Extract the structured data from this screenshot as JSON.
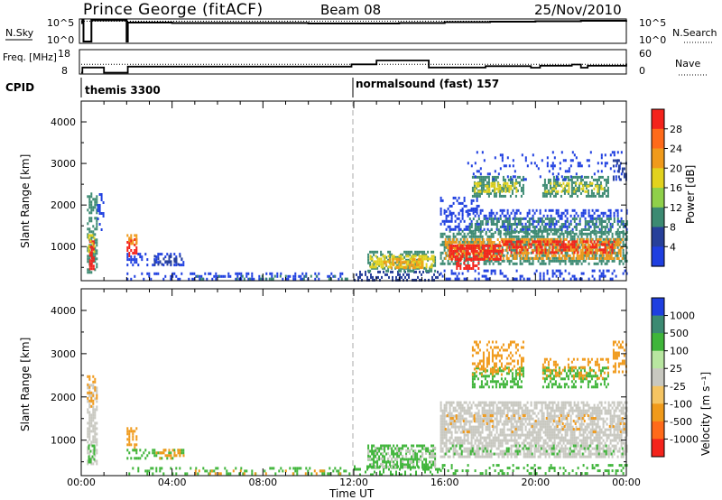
{
  "header": {
    "station": "Prince George (fitACF)",
    "beam": "Beam 08",
    "date": "25/Nov/2010"
  },
  "colors": {
    "blue": "#1f3fe0",
    "blue_dark": "#27409a",
    "teal": "#3c8a72",
    "green": "#3fb53a",
    "yellow": "#e2d21e",
    "orange": "#f09a1b",
    "red": "#f4231c",
    "grey": "#c8c8c0",
    "white": "#ffffff"
  },
  "chart_data": [
    {
      "type": "line",
      "panel": "nsky-nsearch",
      "y_left_label": "N.Sky",
      "y_right_label": "N.Search",
      "y_left_ticks": [
        "10^5",
        "10^0"
      ],
      "y_right_ticks": [
        "10^5",
        "10^0"
      ],
      "ylim": [
        0,
        5
      ],
      "series": [
        {
          "name": "N.Sky",
          "style": "solid",
          "x": [
            0.0,
            0.05,
            0.1,
            0.4,
            0.45,
            0.9,
            2.0,
            2.05,
            4,
            6,
            8,
            10,
            12,
            14,
            16,
            18,
            20,
            22,
            24
          ],
          "y": [
            4.3,
            4.9,
            0.2,
            0.2,
            4.9,
            4.9,
            0.2,
            4.4,
            4.3,
            4.3,
            4.3,
            4.2,
            4.2,
            4.3,
            4.5,
            4.6,
            4.7,
            4.8,
            4.9
          ]
        },
        {
          "name": "N.Search",
          "style": "dotted",
          "x": [
            0,
            24
          ],
          "y": [
            4.7,
            4.7
          ]
        }
      ]
    },
    {
      "type": "line",
      "panel": "frequency-nave",
      "y_left_label": "Freq. [MHz]",
      "y_right_label": "Nave",
      "y_left_ticks": [
        "18",
        "8"
      ],
      "y_right_ticks": [
        "60",
        "0"
      ],
      "ylim": [
        8,
        18
      ],
      "series": [
        {
          "name": "Freq.",
          "style": "solid",
          "x": [
            0,
            0.05,
            0.95,
            1.0,
            2.0,
            2.05,
            11.0,
            11.9,
            13.0,
            15.2,
            15.3,
            17.8,
            19.3,
            19.8,
            20.2,
            21.0,
            21.6,
            22.0,
            22.3,
            24
          ],
          "y": [
            8.2,
            10.5,
            10.5,
            8.2,
            8.2,
            10.9,
            10.9,
            11.9,
            13.6,
            13.6,
            10.5,
            11.1,
            11.1,
            10.4,
            11.3,
            11.3,
            11.8,
            10.4,
            11.3,
            12.2
          ]
        },
        {
          "name": "Nave",
          "style": "dotted",
          "x": [
            0,
            24
          ],
          "y": [
            11.9,
            11.9
          ]
        }
      ]
    },
    {
      "type": "table",
      "panel": "cpid",
      "label": "CPID",
      "segments": [
        {
          "start": 0.0,
          "text": "themis 3300"
        },
        {
          "start": 12.0,
          "text": "normalsound (fast) 157"
        }
      ]
    },
    {
      "type": "heatmap",
      "panel": "power",
      "ylabel": "Slant Range [km]",
      "y_ticks": [
        1000,
        2000,
        3000,
        4000
      ],
      "ylim": [
        180,
        4500
      ],
      "xlim": [
        0,
        24
      ],
      "colorbar": {
        "label": "Power [dB]",
        "ticks": [
          "28",
          "24",
          "20",
          "16",
          "12",
          "8",
          "4"
        ],
        "colors": [
          "#f4231c",
          "#ff6a1a",
          "#f09a1b",
          "#e2d21e",
          "#8fd04a",
          "#3c8a72",
          "#27409a",
          "#1f3fe0"
        ]
      },
      "patches": [
        {
          "t0": 0.25,
          "t1": 0.65,
          "r0": 400,
          "r1": 2300,
          "c": "#3c8a72",
          "d": 0.55
        },
        {
          "t0": 0.35,
          "t1": 0.55,
          "r0": 480,
          "r1": 1150,
          "c": "#f4231c",
          "d": 0.7
        },
        {
          "t0": 0.3,
          "t1": 0.6,
          "r0": 850,
          "r1": 1300,
          "c": "#e2d21e",
          "d": 0.55
        },
        {
          "t0": 0.7,
          "t1": 0.95,
          "r0": 1400,
          "r1": 2350,
          "c": "#1f3fe0",
          "d": 0.3
        },
        {
          "t0": 2.0,
          "t1": 2.4,
          "r0": 800,
          "r1": 1200,
          "c": "#f4231c",
          "d": 0.6
        },
        {
          "t0": 2.0,
          "t1": 2.4,
          "r0": 1100,
          "r1": 1300,
          "c": "#f09a1b",
          "d": 0.5
        },
        {
          "t0": 2.0,
          "t1": 4.5,
          "r0": 550,
          "r1": 850,
          "c": "#1f3fe0",
          "d": 0.35
        },
        {
          "t0": 3.2,
          "t1": 4.5,
          "r0": 550,
          "r1": 800,
          "c": "#27409a",
          "d": 0.4
        },
        {
          "t0": 2.0,
          "t1": 11.8,
          "r0": 200,
          "r1": 380,
          "c": "#1f3fe0",
          "d": 0.3
        },
        {
          "t0": 5.0,
          "t1": 11.8,
          "r0": 200,
          "r1": 320,
          "c": "#3c8a72",
          "d": 0.18
        },
        {
          "t0": 12.0,
          "t1": 15.8,
          "r0": 200,
          "r1": 420,
          "c": "#27409a",
          "d": 0.35
        },
        {
          "t0": 12.6,
          "t1": 15.6,
          "r0": 380,
          "r1": 900,
          "c": "#3c8a72",
          "d": 0.45
        },
        {
          "t0": 12.7,
          "t1": 15.5,
          "r0": 500,
          "r1": 800,
          "c": "#e2d21e",
          "d": 0.6
        },
        {
          "t0": 13.3,
          "t1": 15.0,
          "r0": 520,
          "r1": 720,
          "c": "#f09a1b",
          "d": 0.5
        },
        {
          "t0": 15.8,
          "t1": 24.0,
          "r0": 200,
          "r1": 450,
          "c": "#1f3fe0",
          "d": 0.25
        },
        {
          "t0": 15.8,
          "t1": 24.0,
          "r0": 600,
          "r1": 1400,
          "c": "#3c8a72",
          "d": 0.55
        },
        {
          "t0": 16.0,
          "t1": 23.8,
          "r0": 700,
          "r1": 1200,
          "c": "#f09a1b",
          "d": 0.55
        },
        {
          "t0": 16.2,
          "t1": 18.5,
          "r0": 700,
          "r1": 1050,
          "c": "#f4231c",
          "d": 0.7
        },
        {
          "t0": 18.5,
          "t1": 23.5,
          "r0": 850,
          "r1": 1150,
          "c": "#f4231c",
          "d": 0.45
        },
        {
          "t0": 16.5,
          "t1": 17.5,
          "r0": 480,
          "r1": 700,
          "c": "#f4231c",
          "d": 0.5
        },
        {
          "t0": 15.8,
          "t1": 24.0,
          "r0": 1400,
          "r1": 1900,
          "c": "#1f3fe0",
          "d": 0.35
        },
        {
          "t0": 17.0,
          "t1": 24.0,
          "r0": 1350,
          "r1": 1700,
          "c": "#3c8a72",
          "d": 0.4
        },
        {
          "t0": 15.8,
          "t1": 17.5,
          "r0": 1800,
          "r1": 2200,
          "c": "#1f3fe0",
          "d": 0.3
        },
        {
          "t0": 17.2,
          "t1": 19.5,
          "r0": 2200,
          "r1": 2700,
          "c": "#3c8a72",
          "d": 0.5
        },
        {
          "t0": 17.3,
          "t1": 19.2,
          "r0": 2300,
          "r1": 2550,
          "c": "#e2d21e",
          "d": 0.4
        },
        {
          "t0": 20.3,
          "t1": 23.2,
          "r0": 2200,
          "r1": 2700,
          "c": "#3c8a72",
          "d": 0.5
        },
        {
          "t0": 20.4,
          "t1": 23.0,
          "r0": 2300,
          "r1": 2550,
          "c": "#e2d21e",
          "d": 0.35
        },
        {
          "t0": 17.0,
          "t1": 23.8,
          "r0": 2600,
          "r1": 3300,
          "c": "#1f3fe0",
          "d": 0.15
        },
        {
          "t0": 23.4,
          "t1": 24.0,
          "r0": 2600,
          "r1": 3100,
          "c": "#27409a",
          "d": 0.4
        }
      ]
    },
    {
      "type": "heatmap",
      "panel": "velocity",
      "ylabel": "Slant Range [km]",
      "y_ticks": [
        1000,
        2000,
        3000,
        4000
      ],
      "ylim": [
        180,
        4500
      ],
      "xlim": [
        0,
        24
      ],
      "x_ticks": [
        "00:00",
        "04:00",
        "08:00",
        "12:00",
        "16:00",
        "20:00",
        "00:00"
      ],
      "xlabel": "Time UT",
      "colorbar": {
        "label": "Velocity [m s⁻¹]",
        "ticks": [
          "1000",
          "500",
          "100",
          "25",
          "-25",
          "-100",
          "-500",
          "-1000"
        ],
        "colors": [
          "#1f3fe0",
          "#3c8a72",
          "#3fb53a",
          "#b8e6a0",
          "#c8c8c0",
          "#f5c462",
          "#f09a1b",
          "#ff6a1a",
          "#f4231c"
        ]
      },
      "patches": [
        {
          "t0": 0.25,
          "t1": 0.65,
          "r0": 450,
          "r1": 2300,
          "c": "#c8c8c0",
          "d": 0.55
        },
        {
          "t0": 0.3,
          "t1": 0.6,
          "r0": 500,
          "r1": 900,
          "c": "#3fb53a",
          "d": 0.5
        },
        {
          "t0": 0.25,
          "t1": 0.7,
          "r0": 1800,
          "r1": 2500,
          "c": "#f09a1b",
          "d": 0.3
        },
        {
          "t0": 2.0,
          "t1": 2.4,
          "r0": 750,
          "r1": 1300,
          "c": "#f09a1b",
          "d": 0.5
        },
        {
          "t0": 2.0,
          "t1": 4.5,
          "r0": 550,
          "r1": 800,
          "c": "#3fb53a",
          "d": 0.35
        },
        {
          "t0": 3.2,
          "t1": 4.5,
          "r0": 550,
          "r1": 800,
          "c": "#f09a1b",
          "d": 0.3
        },
        {
          "t0": 2.0,
          "t1": 11.8,
          "r0": 200,
          "r1": 380,
          "c": "#3fb53a",
          "d": 0.22
        },
        {
          "t0": 5.0,
          "t1": 11.8,
          "r0": 200,
          "r1": 320,
          "c": "#f09a1b",
          "d": 0.15
        },
        {
          "t0": 12.0,
          "t1": 15.8,
          "r0": 200,
          "r1": 420,
          "c": "#3fb53a",
          "d": 0.3
        },
        {
          "t0": 12.6,
          "t1": 15.6,
          "r0": 380,
          "r1": 900,
          "c": "#3fb53a",
          "d": 0.6
        },
        {
          "t0": 12.6,
          "t1": 15.6,
          "r0": 400,
          "r1": 850,
          "c": "#c8c8c0",
          "d": 0.2
        },
        {
          "t0": 15.8,
          "t1": 24.0,
          "r0": 200,
          "r1": 450,
          "c": "#3fb53a",
          "d": 0.25
        },
        {
          "t0": 15.8,
          "t1": 24.0,
          "r0": 600,
          "r1": 1900,
          "c": "#c8c8c0",
          "d": 0.7
        },
        {
          "t0": 16.0,
          "t1": 24.0,
          "r0": 650,
          "r1": 900,
          "c": "#3fb53a",
          "d": 0.15
        },
        {
          "t0": 16.0,
          "t1": 24.0,
          "r0": 1200,
          "r1": 1600,
          "c": "#f09a1b",
          "d": 0.08
        },
        {
          "t0": 17.2,
          "t1": 19.5,
          "r0": 2200,
          "r1": 2700,
          "c": "#3fb53a",
          "d": 0.45
        },
        {
          "t0": 17.2,
          "t1": 19.5,
          "r0": 2500,
          "r1": 3300,
          "c": "#f09a1b",
          "d": 0.35
        },
        {
          "t0": 20.3,
          "t1": 23.2,
          "r0": 2200,
          "r1": 2700,
          "c": "#3fb53a",
          "d": 0.45
        },
        {
          "t0": 20.3,
          "t1": 23.2,
          "r0": 2400,
          "r1": 2900,
          "c": "#f09a1b",
          "d": 0.3
        },
        {
          "t0": 23.4,
          "t1": 24.0,
          "r0": 2600,
          "r1": 3300,
          "c": "#f09a1b",
          "d": 0.4
        }
      ]
    }
  ]
}
